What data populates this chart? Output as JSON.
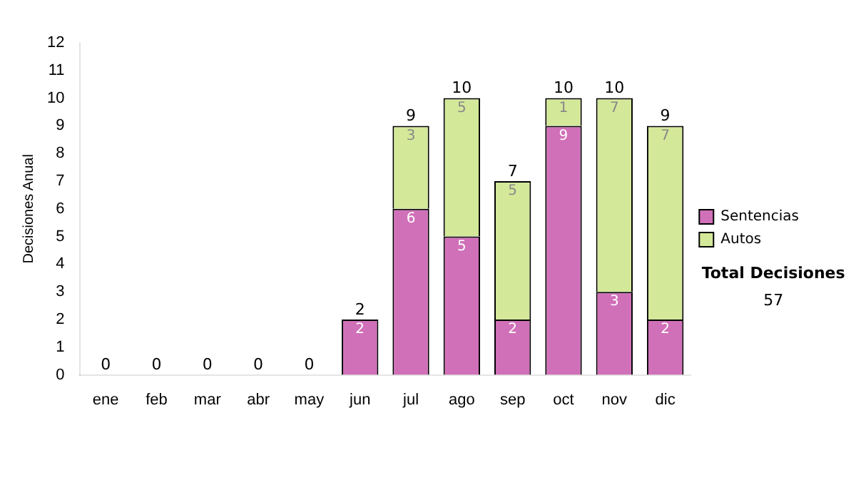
{
  "chart_data": {
    "type": "bar",
    "stacked": true,
    "ylabel": "Decisiones Anual",
    "categories": [
      "ene",
      "feb",
      "mar",
      "abr",
      "may",
      "jun",
      "jul",
      "ago",
      "sep",
      "oct",
      "nov",
      "dic"
    ],
    "series": [
      {
        "name": "Sentencias",
        "color": "#d070b8",
        "values": [
          0,
          0,
          0,
          0,
          0,
          2,
          6,
          5,
          2,
          9,
          3,
          2
        ],
        "value_labels": [
          null,
          null,
          null,
          null,
          null,
          "2",
          "6",
          "5",
          "2",
          "9",
          "3",
          "2"
        ]
      },
      {
        "name": "Autos",
        "color": "#d4e89a",
        "values": [
          0,
          0,
          0,
          0,
          0,
          0,
          3,
          5,
          5,
          1,
          7,
          7
        ],
        "value_labels": [
          null,
          null,
          null,
          null,
          null,
          null,
          "3",
          "5",
          "5",
          "1",
          "7",
          "7"
        ]
      }
    ],
    "totals": [
      "0",
      "0",
      "0",
      "0",
      "0",
      "2",
      "9",
      "10",
      "7",
      "10",
      "10",
      "9"
    ],
    "ylim": [
      0,
      12
    ],
    "yticks": [
      0,
      1,
      2,
      3,
      4,
      5,
      6,
      7,
      8,
      9,
      10,
      11,
      12
    ],
    "grid": false,
    "legend": "right",
    "annotations": [
      "Total Decisiones",
      "57"
    ]
  }
}
